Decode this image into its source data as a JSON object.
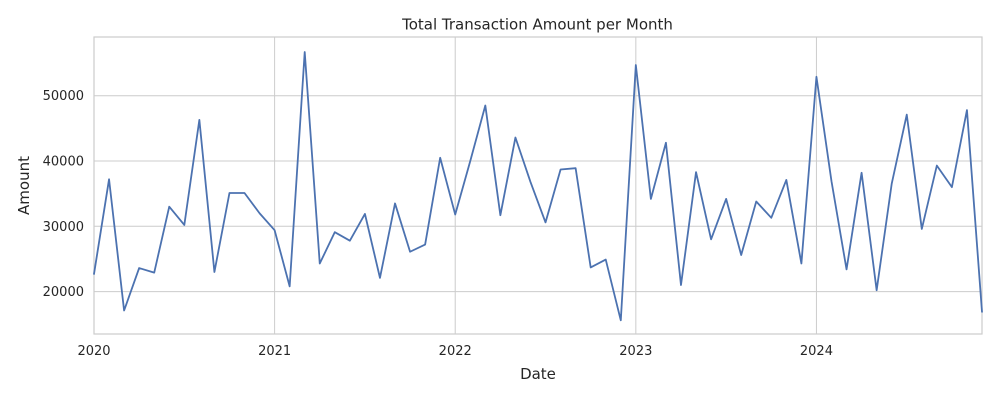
{
  "chart_data": {
    "type": "line",
    "title": "Total Transaction Amount per Month",
    "xlabel": "Date",
    "ylabel": "Amount",
    "grid": true,
    "xlim": [
      "2020-01",
      "2024-12"
    ],
    "ylim": [
      13500,
      59000
    ],
    "x_ticks": [
      "2020",
      "2021",
      "2022",
      "2023",
      "2024"
    ],
    "x_tick_positions": [
      "2020-01",
      "2021-01",
      "2022-01",
      "2023-01",
      "2024-01"
    ],
    "y_ticks": [
      20000,
      30000,
      40000,
      50000
    ],
    "y_tick_labels": [
      "20000",
      "30000",
      "40000",
      "50000"
    ],
    "colors": {
      "line": "#4c72b0",
      "grid": "#cccccc",
      "text": "#262626"
    },
    "x": [
      "2020-01",
      "2020-02",
      "2020-03",
      "2020-04",
      "2020-05",
      "2020-06",
      "2020-07",
      "2020-08",
      "2020-09",
      "2020-10",
      "2020-11",
      "2020-12",
      "2021-01",
      "2021-02",
      "2021-03",
      "2021-04",
      "2021-05",
      "2021-06",
      "2021-07",
      "2021-08",
      "2021-09",
      "2021-10",
      "2021-11",
      "2021-12",
      "2022-01",
      "2022-02",
      "2022-03",
      "2022-04",
      "2022-05",
      "2022-06",
      "2022-07",
      "2022-08",
      "2022-09",
      "2022-10",
      "2022-11",
      "2022-12",
      "2023-01",
      "2023-02",
      "2023-03",
      "2023-04",
      "2023-05",
      "2023-06",
      "2023-07",
      "2023-08",
      "2023-09",
      "2023-10",
      "2023-11",
      "2023-12",
      "2024-01",
      "2024-02",
      "2024-03",
      "2024-04",
      "2024-05",
      "2024-06",
      "2024-07",
      "2024-08",
      "2024-09",
      "2024-10",
      "2024-11",
      "2024-12"
    ],
    "series": [
      {
        "values": [
          22700,
          37200,
          17100,
          23600,
          22900,
          33000,
          30200,
          46300,
          23000,
          35100,
          35100,
          32000,
          29400,
          20800,
          56700,
          24300,
          29100,
          27800,
          31900,
          22100,
          33500,
          26100,
          27200,
          40500,
          31800,
          40000,
          48500,
          31700,
          43600,
          36800,
          30600,
          38700,
          38900,
          23700,
          24900,
          15600,
          54700,
          34200,
          42800,
          21000,
          38300,
          28000,
          34200,
          25600,
          33800,
          31300,
          37100,
          24300,
          52900,
          36900,
          23400,
          38200,
          20200,
          36500,
          47100,
          29600,
          39300,
          36000,
          47800,
          16900
        ]
      }
    ]
  }
}
